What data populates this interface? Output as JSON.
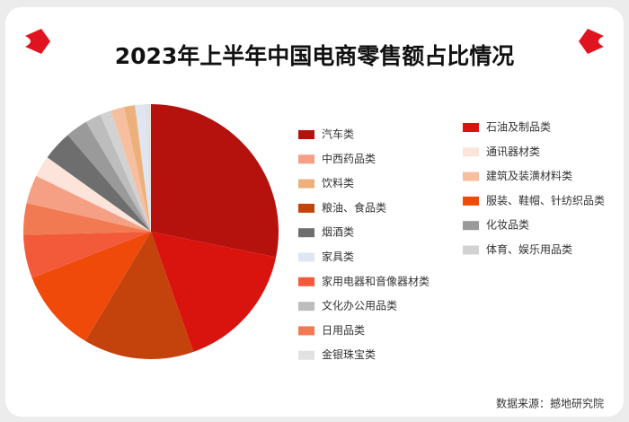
{
  "chart_data": {
    "type": "pie",
    "title": "2023年上半年中国电商零售额占比情况",
    "source": "数据来源：撼地研究院",
    "categories": [
      "汽车类",
      "石油及制品类",
      "粮油、食品类",
      "服装、鞋帽、针纺织品类",
      "家用电器和音像器材类",
      "日用品类",
      "中西药品类",
      "通讯器材类",
      "烟酒类",
      "化妆品类",
      "文化办公用品类",
      "体育、娱乐用品类",
      "建筑及装潢材料类",
      "饮料类",
      "家具类",
      "金银珠宝类"
    ],
    "values": [
      28.2,
      16.4,
      14,
      10.5,
      5.5,
      4,
      3.6,
      2.7,
      3.8,
      2.8,
      2,
      1.4,
      1.7,
      1.4,
      1.2,
      0.8
    ],
    "colors": [
      "#b5120e",
      "#d9140e",
      "#c4420c",
      "#f04a0a",
      "#f25a3a",
      "#f27a52",
      "#f5a084",
      "#fde4da",
      "#6e6e6e",
      "#9a9a9a",
      "#bdbdbd",
      "#d2d2d2",
      "#f6c0a0",
      "#eeb07a",
      "#dfe6f2",
      "#e2e2e2"
    ]
  }
}
